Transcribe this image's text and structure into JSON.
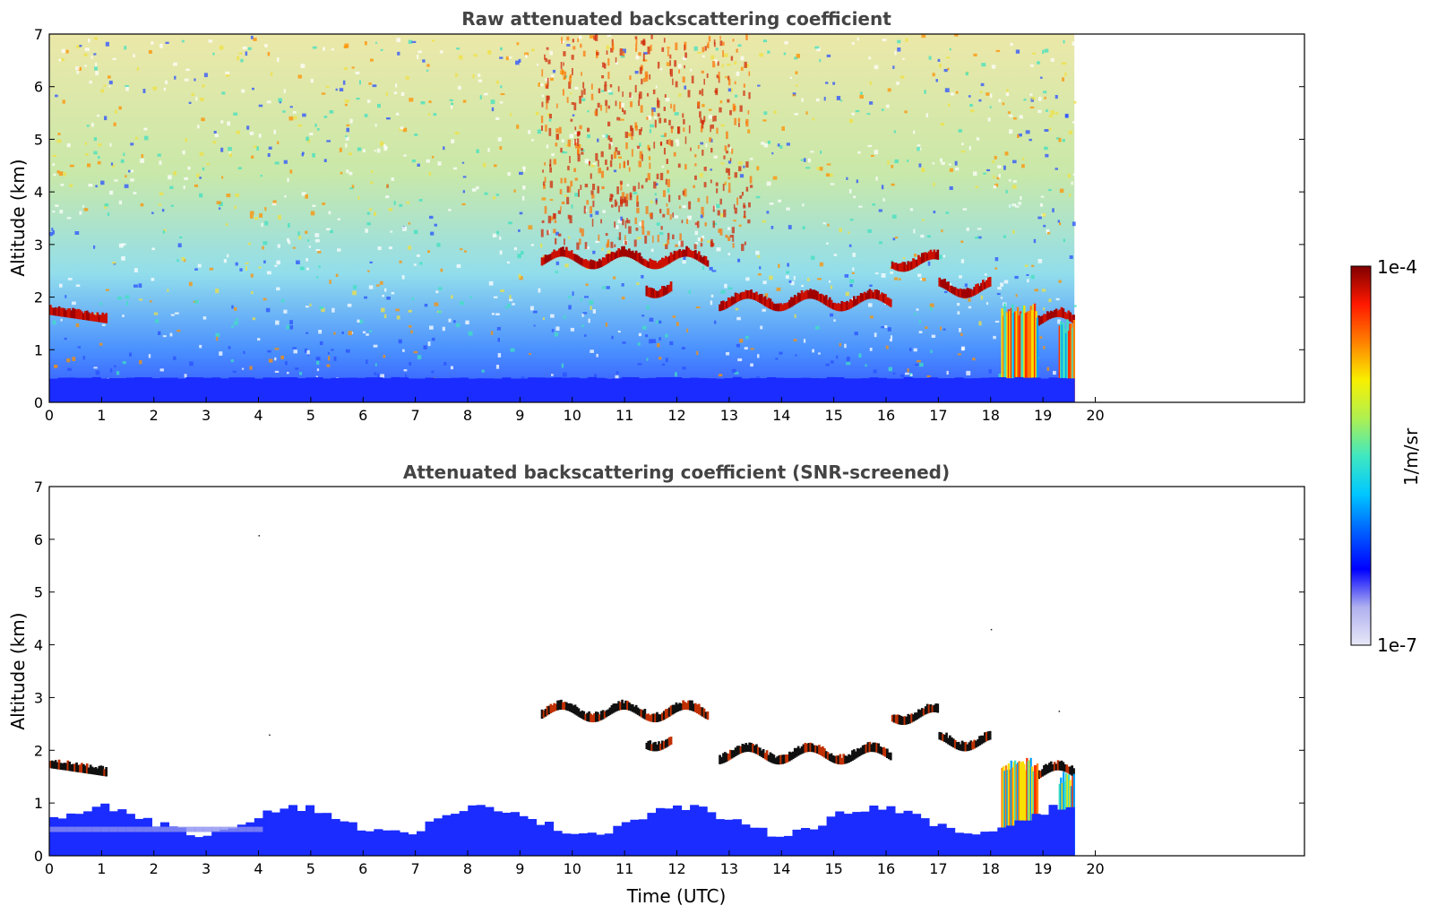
{
  "chart_data": [
    {
      "type": "heatmap",
      "title": "Raw attenuated backscattering coefficient",
      "xlabel": "",
      "ylabel": "Altitude (km)",
      "xlim": [
        0,
        24
      ],
      "ylim": [
        0,
        7
      ],
      "x_ticks": [
        "0",
        "1",
        "2",
        "3",
        "4",
        "5",
        "6",
        "7",
        "8",
        "9",
        "10",
        "11",
        "12",
        "13",
        "14",
        "15",
        "16",
        "17",
        "18",
        "19",
        "20"
      ],
      "y_ticks": [
        "0",
        "1",
        "2",
        "3",
        "4",
        "5",
        "6",
        "7"
      ],
      "data_end_hour": 19.6,
      "grid": false,
      "features": [
        {
          "kind": "cloud_layer",
          "t_start": 0.0,
          "t_end": 1.1,
          "alt_start": 1.66,
          "alt_end": 1.5
        },
        {
          "kind": "cloud_layer",
          "t_start": 9.4,
          "t_end": 12.6,
          "alt": 2.65
        },
        {
          "kind": "cloud_layer",
          "t_start": 11.4,
          "t_end": 11.9,
          "alt": 2.1
        },
        {
          "kind": "cloud_layer",
          "t_start": 12.8,
          "t_end": 16.1,
          "alt": 1.85
        },
        {
          "kind": "cloud_layer",
          "t_start": 16.1,
          "t_end": 17.0,
          "alt": 2.6
        },
        {
          "kind": "cloud_layer",
          "t_start": 17.0,
          "t_end": 18.0,
          "alt": 2.1
        },
        {
          "kind": "cloud_layer",
          "t_start": 18.8,
          "t_end": 19.6,
          "alt": 1.5
        },
        {
          "kind": "precipitation",
          "t_start": 18.2,
          "t_end": 18.9,
          "alt_top": 1.9
        },
        {
          "kind": "precipitation",
          "t_start": 19.3,
          "t_end": 19.6,
          "alt_top": 1.6
        },
        {
          "kind": "boundary_layer",
          "t_start": 0.0,
          "t_end": 19.6,
          "alt_top": 0.45
        }
      ]
    },
    {
      "type": "heatmap",
      "title": "Attenuated backscattering coefficient (SNR-screened)",
      "xlabel": "Time (UTC)",
      "ylabel": "Altitude (km)",
      "xlim": [
        0,
        24
      ],
      "ylim": [
        0,
        7
      ],
      "x_ticks": [
        "0",
        "1",
        "2",
        "3",
        "4",
        "5",
        "6",
        "7",
        "8",
        "9",
        "10",
        "11",
        "12",
        "13",
        "14",
        "15",
        "16",
        "17",
        "18",
        "19",
        "20"
      ],
      "y_ticks": [
        "0",
        "1",
        "2",
        "3",
        "4",
        "5",
        "6",
        "7"
      ],
      "data_end_hour": 19.6,
      "grid": false,
      "features": [
        {
          "kind": "cloud_layer",
          "t_start": 0.0,
          "t_end": 1.1,
          "alt_start": 1.66,
          "alt_end": 1.5
        },
        {
          "kind": "cloud_layer",
          "t_start": 9.4,
          "t_end": 12.6,
          "alt": 2.65
        },
        {
          "kind": "cloud_layer",
          "t_start": 11.4,
          "t_end": 11.9,
          "alt": 2.1
        },
        {
          "kind": "cloud_layer",
          "t_start": 12.8,
          "t_end": 16.1,
          "alt": 1.85
        },
        {
          "kind": "cloud_layer",
          "t_start": 16.1,
          "t_end": 17.0,
          "alt": 2.6
        },
        {
          "kind": "cloud_layer",
          "t_start": 17.0,
          "t_end": 18.0,
          "alt": 2.1
        },
        {
          "kind": "cloud_layer",
          "t_start": 18.8,
          "t_end": 19.6,
          "alt": 1.5
        },
        {
          "kind": "precipitation",
          "t_start": 18.2,
          "t_end": 18.9,
          "alt_top": 1.9
        },
        {
          "kind": "precipitation",
          "t_start": 19.3,
          "t_end": 19.6,
          "alt_top": 1.6
        },
        {
          "kind": "boundary_layer",
          "t_start": 0.0,
          "t_end": 19.6,
          "alt_top": 0.65
        }
      ]
    }
  ],
  "colorbar": {
    "label": "1/m/sr",
    "min_label": "1e-7",
    "max_label": "1e-4",
    "colors": [
      "#e8e8f8",
      "#b0b0f0",
      "#0000ff",
      "#0060ff",
      "#00c8ff",
      "#40e8c0",
      "#b0f050",
      "#f8f000",
      "#ff8000",
      "#ff1800",
      "#800000"
    ]
  }
}
